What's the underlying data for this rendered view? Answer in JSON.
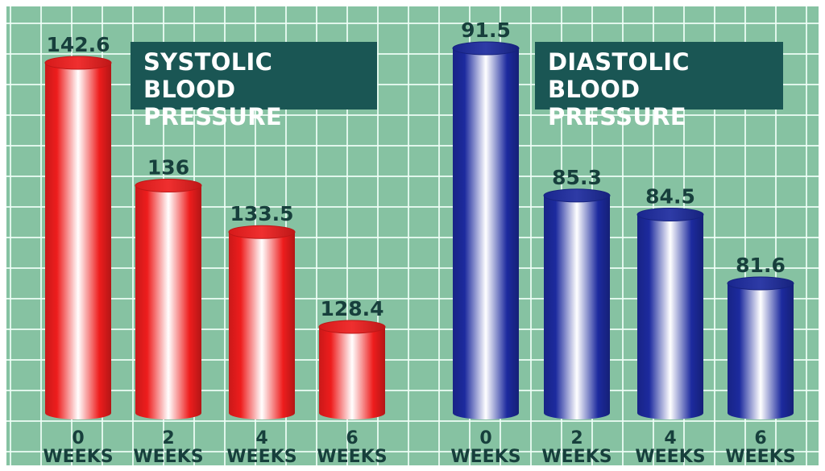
{
  "colors": {
    "systolic": "#ee1d1d",
    "diastolic": "#1c2a9e",
    "title_bg": "#1a5654",
    "label_text": "#173f3c",
    "grid_bg": "#86c2a2"
  },
  "chart_data": [
    {
      "type": "bar",
      "title": [
        "SYSTOLIC",
        "BLOOD PRESSURE"
      ],
      "categories": [
        {
          "num": "0",
          "unit": "WEEKS"
        },
        {
          "num": "2",
          "unit": "WEEKS"
        },
        {
          "num": "4",
          "unit": "WEEKS"
        },
        {
          "num": "6",
          "unit": "WEEKS"
        }
      ],
      "values": [
        142.6,
        136,
        133.5,
        128.4
      ],
      "value_labels": [
        "142.6",
        "136",
        "133.5",
        "128.4"
      ]
    },
    {
      "type": "bar",
      "title": [
        "DIASTOLIC",
        "BLOOD PRESSURE"
      ],
      "categories": [
        {
          "num": "0",
          "unit": "WEEKS"
        },
        {
          "num": "2",
          "unit": "WEEKS"
        },
        {
          "num": "4",
          "unit": "WEEKS"
        },
        {
          "num": "6",
          "unit": "WEEKS"
        }
      ],
      "values": [
        91.5,
        85.3,
        84.5,
        81.6
      ],
      "value_labels": [
        "91.5",
        "85.3",
        "84.5",
        "81.6"
      ]
    }
  ]
}
